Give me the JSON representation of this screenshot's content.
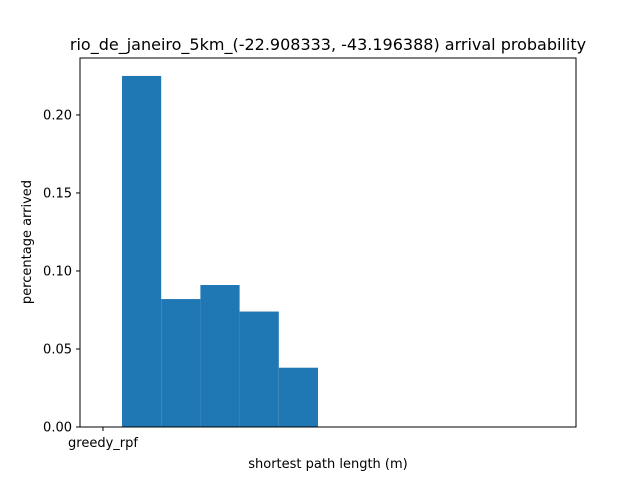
{
  "chart_data": {
    "type": "bar",
    "title": "rio_de_janeiro_5km_(-22.908333, -43.196388) arrival probability",
    "xlabel": "shortest path length (m)",
    "ylabel": "percentage arrived",
    "xtick_labels": [
      "greedy_rpf"
    ],
    "ylim": [
      0,
      0.2365
    ],
    "yticks": [
      0.0,
      0.05,
      0.1,
      0.15,
      0.2
    ],
    "ytick_labels": [
      "0.00",
      "0.05",
      "0.10",
      "0.15",
      "0.20"
    ],
    "bar_color": "#1f77b4",
    "grid": false,
    "bins": [
      {
        "value": 0.225
      },
      {
        "value": 0.082
      },
      {
        "value": 0.091
      },
      {
        "value": 0.074
      },
      {
        "value": 0.038
      }
    ]
  }
}
